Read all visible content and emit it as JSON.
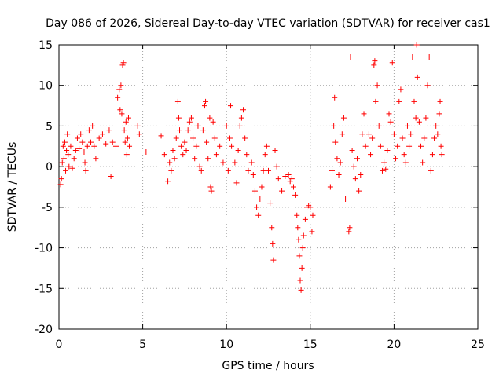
{
  "chart_data": {
    "type": "scatter",
    "title": "Day 086 of 2026, Sidereal Day-to-day VTEC variation (SDTVAR) for receiver cas1",
    "xlabel": "GPS time / hours",
    "ylabel": "SDTVAR / TECUs",
    "xlim": [
      0,
      25
    ],
    "ylim": [
      -20,
      15
    ],
    "xticks": [
      0,
      5,
      10,
      15,
      20,
      25
    ],
    "yticks": [
      -20,
      -15,
      -10,
      -5,
      0,
      5,
      10,
      15
    ],
    "grid": true,
    "marker": "+",
    "series": [
      {
        "name": "SDTVAR",
        "color": "#ff0000",
        "points": [
          [
            0.1,
            -2.2
          ],
          [
            0.15,
            -1.5
          ],
          [
            0.2,
            0.5
          ],
          [
            0.25,
            2.5
          ],
          [
            0.3,
            1.0
          ],
          [
            0.35,
            3.0
          ],
          [
            0.4,
            -0.5
          ],
          [
            0.45,
            2.0
          ],
          [
            0.5,
            4.0
          ],
          [
            0.55,
            1.5
          ],
          [
            0.6,
            0.0
          ],
          [
            0.7,
            2.5
          ],
          [
            0.8,
            -0.2
          ],
          [
            0.9,
            1.0
          ],
          [
            1.0,
            2.0
          ],
          [
            1.1,
            3.5
          ],
          [
            1.2,
            2.2
          ],
          [
            1.3,
            4.0
          ],
          [
            1.4,
            3.0
          ],
          [
            1.5,
            1.8
          ],
          [
            1.55,
            0.5
          ],
          [
            1.6,
            -0.5
          ],
          [
            1.7,
            2.5
          ],
          [
            1.8,
            4.5
          ],
          [
            1.9,
            3.0
          ],
          [
            2.0,
            5.0
          ],
          [
            2.1,
            2.5
          ],
          [
            2.2,
            1.0
          ],
          [
            2.4,
            3.5
          ],
          [
            2.6,
            4.0
          ],
          [
            2.8,
            2.8
          ],
          [
            3.0,
            4.5
          ],
          [
            3.1,
            -1.2
          ],
          [
            3.2,
            3.0
          ],
          [
            3.4,
            2.5
          ],
          [
            3.5,
            8.5
          ],
          [
            3.6,
            9.5
          ],
          [
            3.65,
            7.0
          ],
          [
            3.7,
            10.0
          ],
          [
            3.75,
            6.5
          ],
          [
            3.8,
            12.5
          ],
          [
            3.85,
            12.8
          ],
          [
            3.9,
            4.5
          ],
          [
            3.95,
            3.0
          ],
          [
            4.0,
            5.5
          ],
          [
            4.05,
            1.5
          ],
          [
            4.1,
            3.5
          ],
          [
            4.15,
            6.0
          ],
          [
            4.2,
            2.5
          ],
          [
            4.7,
            5.0
          ],
          [
            4.8,
            4.0
          ],
          [
            5.2,
            1.8
          ],
          [
            6.1,
            3.8
          ],
          [
            6.3,
            1.5
          ],
          [
            6.5,
            -1.8
          ],
          [
            6.6,
            0.5
          ],
          [
            6.7,
            -0.5
          ],
          [
            6.8,
            2.0
          ],
          [
            6.9,
            1.0
          ],
          [
            7.0,
            3.5
          ],
          [
            7.1,
            8.0
          ],
          [
            7.15,
            6.0
          ],
          [
            7.2,
            4.5
          ],
          [
            7.3,
            2.5
          ],
          [
            7.4,
            1.5
          ],
          [
            7.5,
            3.0
          ],
          [
            7.6,
            2.0
          ],
          [
            7.7,
            4.5
          ],
          [
            7.8,
            5.5
          ],
          [
            7.9,
            6.0
          ],
          [
            8.0,
            3.5
          ],
          [
            8.1,
            1.0
          ],
          [
            8.2,
            2.5
          ],
          [
            8.3,
            5.0
          ],
          [
            8.4,
            0.0
          ],
          [
            8.5,
            -0.5
          ],
          [
            8.6,
            4.5
          ],
          [
            8.7,
            7.5
          ],
          [
            8.75,
            8.0
          ],
          [
            8.8,
            3.0
          ],
          [
            8.9,
            1.0
          ],
          [
            9.0,
            6.0
          ],
          [
            9.05,
            -2.5
          ],
          [
            9.1,
            -3.0
          ],
          [
            9.2,
            5.5
          ],
          [
            9.3,
            3.5
          ],
          [
            9.4,
            1.5
          ],
          [
            9.6,
            2.5
          ],
          [
            9.8,
            0.5
          ],
          [
            10.0,
            5.0
          ],
          [
            10.1,
            -0.5
          ],
          [
            10.2,
            3.5
          ],
          [
            10.25,
            7.5
          ],
          [
            10.3,
            2.5
          ],
          [
            10.5,
            0.5
          ],
          [
            10.6,
            -2.0
          ],
          [
            10.7,
            2.0
          ],
          [
            10.8,
            5.0
          ],
          [
            10.9,
            6.0
          ],
          [
            11.0,
            7.0
          ],
          [
            11.1,
            3.5
          ],
          [
            11.2,
            1.5
          ],
          [
            11.3,
            -0.5
          ],
          [
            11.5,
            0.5
          ],
          [
            11.6,
            -1.0
          ],
          [
            11.7,
            -3.0
          ],
          [
            11.8,
            -5.0
          ],
          [
            11.9,
            -6.0
          ],
          [
            12.0,
            -4.0
          ],
          [
            12.1,
            -2.5
          ],
          [
            12.2,
            -0.5
          ],
          [
            12.3,
            1.5
          ],
          [
            12.4,
            2.5
          ],
          [
            12.5,
            -0.5
          ],
          [
            12.6,
            -4.5
          ],
          [
            12.7,
            -7.5
          ],
          [
            12.75,
            -9.5
          ],
          [
            12.8,
            -11.5
          ],
          [
            12.9,
            2.0
          ],
          [
            13.0,
            0.0
          ],
          [
            13.1,
            -1.5
          ],
          [
            13.3,
            -3.0
          ],
          [
            13.5,
            -1.2
          ],
          [
            13.7,
            -1.0
          ],
          [
            13.8,
            -1.8
          ],
          [
            13.9,
            -1.5
          ],
          [
            14.0,
            -2.5
          ],
          [
            14.1,
            -3.5
          ],
          [
            14.2,
            -6.0
          ],
          [
            14.25,
            -7.5
          ],
          [
            14.3,
            -9.0
          ],
          [
            14.35,
            -11.0
          ],
          [
            14.4,
            -14.0
          ],
          [
            14.45,
            -15.2
          ],
          [
            14.5,
            -12.5
          ],
          [
            14.55,
            -10.0
          ],
          [
            14.6,
            -8.5
          ],
          [
            14.7,
            -6.5
          ],
          [
            14.8,
            -5.0
          ],
          [
            14.9,
            -4.8
          ],
          [
            15.0,
            -5.0
          ],
          [
            15.1,
            -8.0
          ],
          [
            15.15,
            -6.0
          ],
          [
            16.2,
            -2.5
          ],
          [
            16.3,
            -0.5
          ],
          [
            16.4,
            5.0
          ],
          [
            16.45,
            8.5
          ],
          [
            16.5,
            3.0
          ],
          [
            16.6,
            1.0
          ],
          [
            16.7,
            -1.0
          ],
          [
            16.8,
            0.5
          ],
          [
            16.9,
            4.0
          ],
          [
            17.0,
            6.0
          ],
          [
            17.1,
            -4.0
          ],
          [
            17.3,
            -8.0
          ],
          [
            17.35,
            -7.5
          ],
          [
            17.4,
            13.5
          ],
          [
            17.5,
            2.0
          ],
          [
            17.6,
            0.0
          ],
          [
            17.7,
            -1.5
          ],
          [
            17.8,
            1.0
          ],
          [
            17.9,
            -3.0
          ],
          [
            18.0,
            -1.0
          ],
          [
            18.1,
            4.0
          ],
          [
            18.2,
            6.5
          ],
          [
            18.3,
            2.5
          ],
          [
            18.5,
            4.0
          ],
          [
            18.6,
            1.5
          ],
          [
            18.7,
            3.5
          ],
          [
            18.8,
            12.5
          ],
          [
            18.85,
            13.0
          ],
          [
            18.9,
            8.0
          ],
          [
            19.0,
            10.0
          ],
          [
            19.1,
            5.0
          ],
          [
            19.2,
            2.5
          ],
          [
            19.3,
            -0.5
          ],
          [
            19.4,
            0.5
          ],
          [
            19.5,
            -0.3
          ],
          [
            19.6,
            2.0
          ],
          [
            19.7,
            6.5
          ],
          [
            19.8,
            5.5
          ],
          [
            19.9,
            12.8
          ],
          [
            20.0,
            4.0
          ],
          [
            20.1,
            1.0
          ],
          [
            20.2,
            2.5
          ],
          [
            20.3,
            8.0
          ],
          [
            20.4,
            9.5
          ],
          [
            20.5,
            3.5
          ],
          [
            20.6,
            1.5
          ],
          [
            20.7,
            0.5
          ],
          [
            20.8,
            5.0
          ],
          [
            20.9,
            2.5
          ],
          [
            21.0,
            4.0
          ],
          [
            21.1,
            13.5
          ],
          [
            21.2,
            8.0
          ],
          [
            21.3,
            6.0
          ],
          [
            21.35,
            15.0
          ],
          [
            21.4,
            11.0
          ],
          [
            21.5,
            5.5
          ],
          [
            21.6,
            2.5
          ],
          [
            21.7,
            0.5
          ],
          [
            21.8,
            3.5
          ],
          [
            21.9,
            6.0
          ],
          [
            22.0,
            10.0
          ],
          [
            22.1,
            13.5
          ],
          [
            22.2,
            -0.5
          ],
          [
            22.3,
            1.5
          ],
          [
            22.4,
            3.5
          ],
          [
            22.5,
            5.0
          ],
          [
            22.6,
            4.0
          ],
          [
            22.7,
            6.5
          ],
          [
            22.75,
            8.0
          ],
          [
            22.8,
            2.5
          ],
          [
            22.85,
            1.5
          ]
        ]
      }
    ]
  }
}
